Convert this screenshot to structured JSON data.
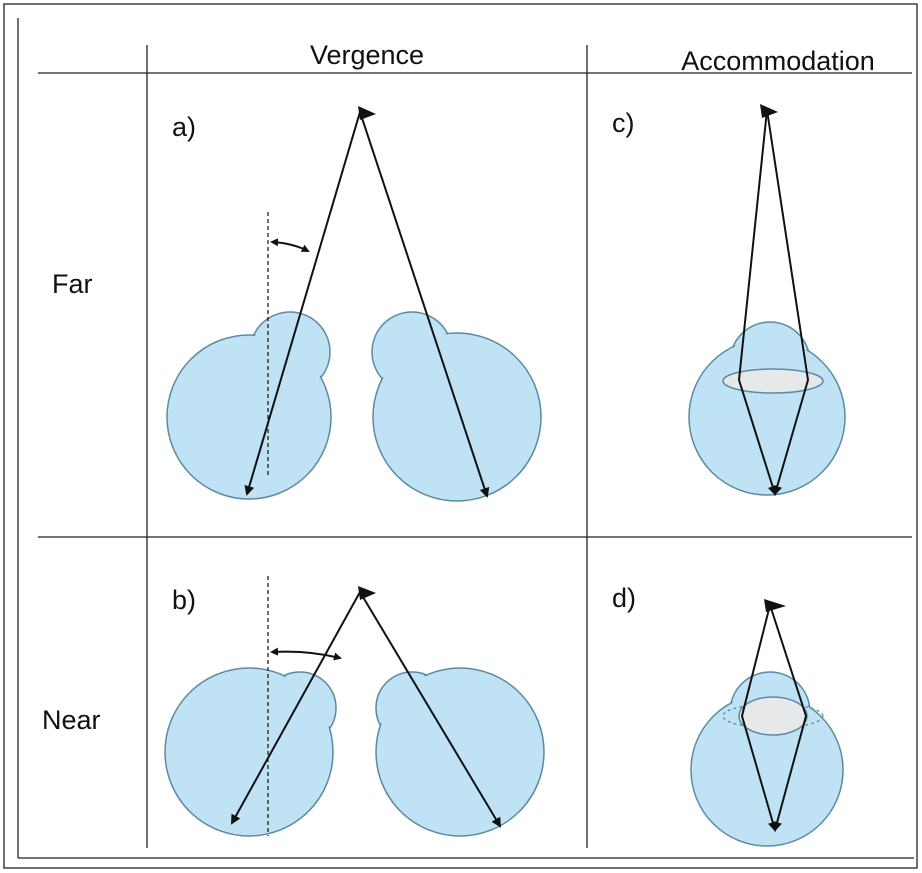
{
  "header": {
    "columns": [
      "Vergence",
      "Accommodation"
    ]
  },
  "rows": [
    "Far",
    "Near"
  ],
  "panels": [
    "a)",
    "b)",
    "c)",
    "d)"
  ]
}
